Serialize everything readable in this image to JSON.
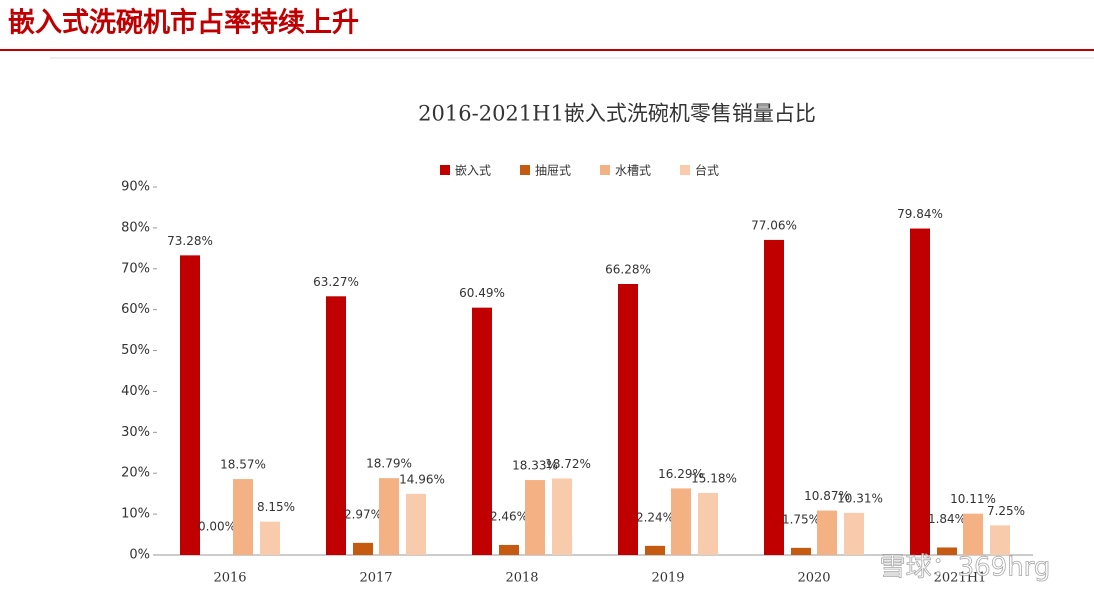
{
  "header": {
    "title": "嵌入式洗碗机市占率持续上升"
  },
  "chart_data": {
    "type": "bar",
    "title": "2016-2021H1嵌入式洗碗机零售销量占比",
    "categories": [
      "2016",
      "2017",
      "2018",
      "2019",
      "2020",
      "2021H1"
    ],
    "series": [
      {
        "name": "嵌入式",
        "color": "#c00000",
        "values": [
          73.28,
          63.27,
          60.49,
          66.28,
          77.06,
          79.84
        ],
        "value_labels": [
          "73.28%",
          "63.27%",
          "60.49%",
          "66.28%",
          "77.06%",
          "79.84%"
        ]
      },
      {
        "name": "抽屉式",
        "color": "#c55a11",
        "values": [
          0.0,
          2.97,
          2.46,
          2.24,
          1.75,
          1.84
        ],
        "value_labels": [
          "0.00%",
          "2.97%",
          "2.46%",
          "2.24%",
          "1.75%",
          "1.84%"
        ]
      },
      {
        "name": "水槽式",
        "color": "#f4b183",
        "values": [
          18.57,
          18.79,
          18.33,
          16.29,
          10.87,
          10.11
        ],
        "value_labels": [
          "18.57%",
          "18.79%",
          "18.33%",
          "16.29%",
          "10.87%",
          "10.11%"
        ]
      },
      {
        "name": "台式",
        "color": "#f8cbad",
        "values": [
          8.15,
          14.96,
          18.72,
          15.18,
          10.31,
          7.25
        ],
        "value_labels": [
          "8.15%",
          "14.96%",
          "18.72%",
          "15.18%",
          "10.31%",
          "7.25%"
        ]
      }
    ],
    "ylim": [
      0,
      90
    ],
    "yticks": [
      {
        "value": 0,
        "label": "0%"
      },
      {
        "value": 10,
        "label": "10%"
      },
      {
        "value": 20,
        "label": "20%"
      },
      {
        "value": 30,
        "label": "30%"
      },
      {
        "value": 40,
        "label": "40%"
      },
      {
        "value": 50,
        "label": "50%"
      },
      {
        "value": 60,
        "label": "60%"
      },
      {
        "value": 70,
        "label": "70%"
      },
      {
        "value": 80,
        "label": "80%"
      },
      {
        "value": 90,
        "label": "90%"
      }
    ],
    "watermark": "雪球：369hrg"
  }
}
